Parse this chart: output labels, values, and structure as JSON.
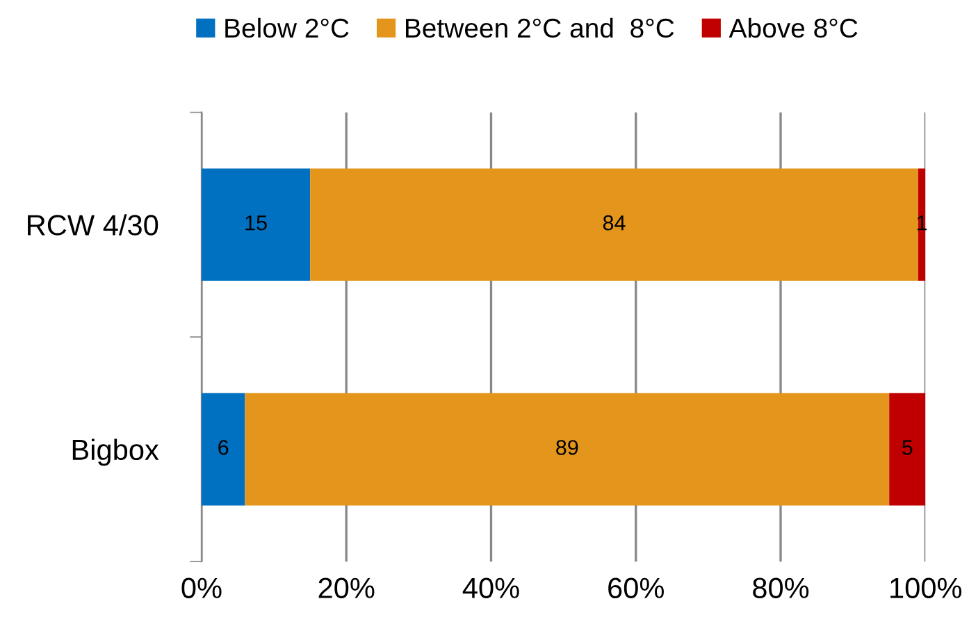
{
  "chart_data": {
    "type": "bar",
    "orientation": "horizontal",
    "stacked": true,
    "categories": [
      "RCW 4/30",
      "Bigbox"
    ],
    "series": [
      {
        "name": "Below 2°C",
        "color": "#0070c0",
        "values": [
          15,
          6
        ]
      },
      {
        "name": "Between 2°C and  8°C",
        "color": "#e3961b",
        "values": [
          84,
          89
        ]
      },
      {
        "name": "Above 8°C",
        "color": "#c00000",
        "values": [
          1,
          5
        ]
      }
    ],
    "xlim": [
      0,
      100
    ],
    "xticks": [
      {
        "value": 0,
        "label": "0%"
      },
      {
        "value": 20,
        "label": "20%"
      },
      {
        "value": 40,
        "label": "40%"
      },
      {
        "value": 60,
        "label": "60%"
      },
      {
        "value": 80,
        "label": "80%"
      },
      {
        "value": 100,
        "label": "100%"
      }
    ],
    "grid": "x",
    "legend": "top",
    "data_labels": true
  }
}
